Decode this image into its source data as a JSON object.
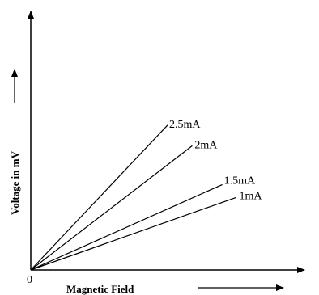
{
  "chart_data": {
    "type": "line",
    "title": "",
    "xlabel": "Magnetic Field",
    "ylabel": "Voltage  in mV",
    "origin_label": "0",
    "x_range": [
      0,
      1
    ],
    "y_range": [
      0,
      1
    ],
    "grid": false,
    "legend": "none",
    "series": [
      {
        "name": "2.5mA",
        "points": [
          [
            0,
            0
          ],
          [
            0.5,
            0.56
          ]
        ]
      },
      {
        "name": "2mA",
        "points": [
          [
            0,
            0
          ],
          [
            0.59,
            0.48
          ]
        ]
      },
      {
        "name": "1.5mA",
        "points": [
          [
            0,
            0
          ],
          [
            0.7,
            0.33
          ]
        ]
      },
      {
        "name": "1mA",
        "points": [
          [
            0,
            0
          ],
          [
            0.75,
            0.28
          ]
        ]
      }
    ],
    "line_color": "#000000"
  }
}
